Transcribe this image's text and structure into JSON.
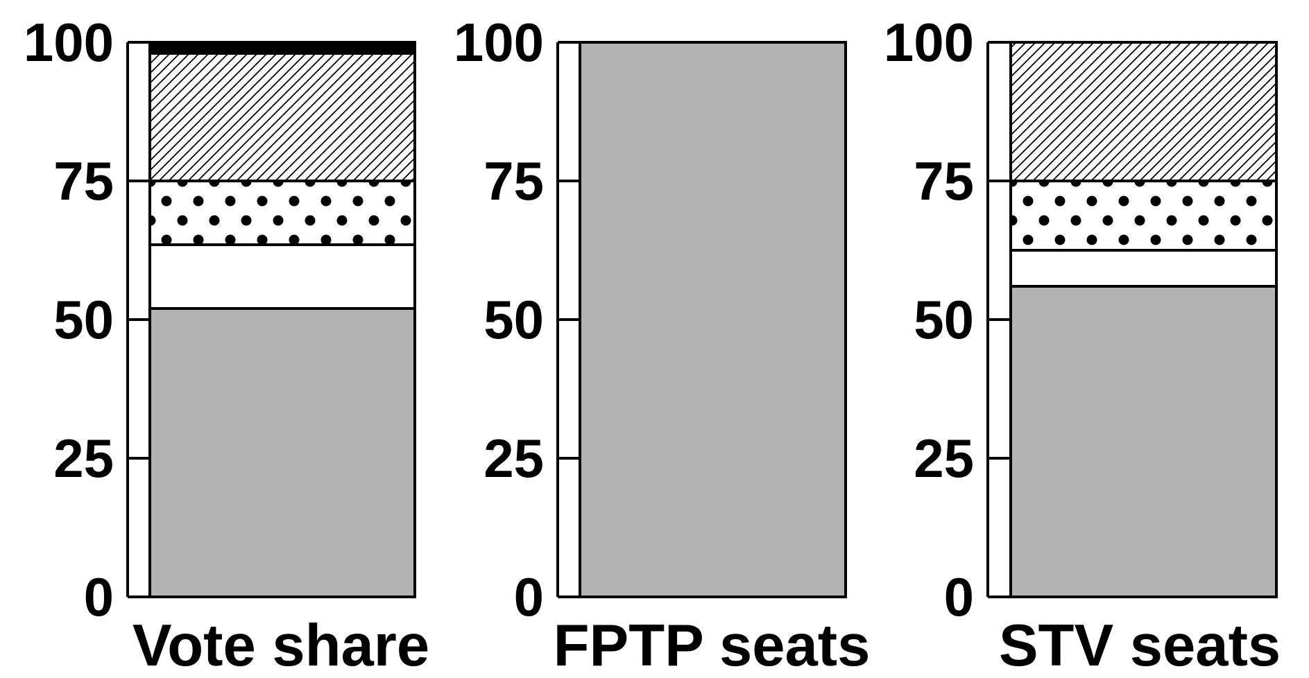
{
  "chart_data": {
    "type": "bar",
    "stacked": true,
    "ylim": [
      0,
      100
    ],
    "yticks": [
      "0",
      "25",
      "50",
      "75",
      "100"
    ],
    "grid": false,
    "legend": "none",
    "categories": [
      "Vote share",
      "FPTP seats",
      "STV seats"
    ],
    "series": [
      {
        "fill": "gray",
        "color": "#b3b3b3",
        "values": [
          52,
          100,
          56
        ]
      },
      {
        "fill": "white",
        "color": "#ffffff",
        "values": [
          11.5,
          0,
          6.5
        ]
      },
      {
        "fill": "dots",
        "color": "#ffffff",
        "values": [
          11.5,
          0,
          12.5
        ]
      },
      {
        "fill": "hatch",
        "color": "#ffffff",
        "values": [
          23,
          0,
          25
        ]
      },
      {
        "fill": "black",
        "color": "#000000",
        "values": [
          2,
          0,
          0
        ]
      }
    ]
  }
}
